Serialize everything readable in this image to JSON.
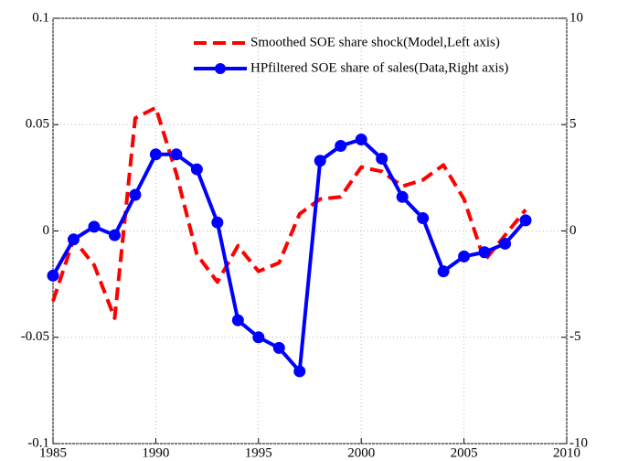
{
  "chart_data": {
    "type": "line",
    "x": [
      1985,
      1986,
      1987,
      1988,
      1989,
      1990,
      1991,
      1992,
      1993,
      1994,
      1995,
      1996,
      1997,
      1998,
      1999,
      2000,
      2001,
      2002,
      2003,
      2004,
      2005,
      2006,
      2007,
      2008
    ],
    "series": [
      {
        "name": "Smoothed SOE share shock(Model,Left axis)",
        "color": "#ff0000",
        "dash": true,
        "markers": false,
        "axis": "y",
        "values": [
          -0.033,
          -0.004,
          -0.016,
          -0.041,
          0.053,
          0.058,
          0.027,
          -0.011,
          -0.024,
          -0.007,
          -0.019,
          -0.015,
          0.008,
          0.015,
          0.016,
          0.03,
          0.028,
          0.021,
          0.024,
          0.031,
          0.015,
          -0.014,
          -0.002,
          0.01
        ]
      },
      {
        "name": "HPfiltered SOE share of sales(Data,Right axis)",
        "color": "#0000ff",
        "dash": false,
        "markers": true,
        "axis": "y2",
        "values": [
          -2.1,
          -0.4,
          0.2,
          -0.2,
          1.7,
          3.6,
          3.6,
          2.9,
          0.4,
          -4.2,
          -5.0,
          -5.5,
          -6.6,
          3.3,
          4.0,
          4.3,
          3.4,
          1.6,
          0.6,
          -1.9,
          -1.2,
          -1.0,
          -0.6,
          0.5
        ]
      }
    ],
    "xlim": [
      1985,
      2010
    ],
    "xticks": [
      1985,
      1990,
      1995,
      2000,
      2005,
      2010
    ],
    "ylim": [
      -0.1,
      0.1
    ],
    "yticks": [
      -0.1,
      -0.05,
      0,
      0.05,
      0.1
    ],
    "y2lim": [
      -10,
      10
    ],
    "y2ticks": [
      -10,
      -5,
      0,
      5,
      10
    ],
    "grid": true,
    "legend": "top-right"
  }
}
